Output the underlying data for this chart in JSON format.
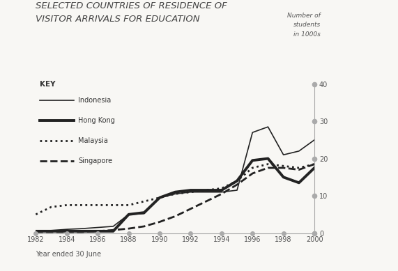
{
  "title_line1": "SELECTED COUNTRIES OF RESIDENCE OF",
  "title_line2": "VISITOR ARRIVALS FOR EDUCATION",
  "right_label_line1": "Number of",
  "right_label_line2": "students",
  "right_label_line3": "in 1000s",
  "xlabel": "Year ended 30 June",
  "ylim": [
    0,
    40
  ],
  "xlim": [
    1982,
    2000
  ],
  "yticks": [
    0,
    10,
    20,
    30,
    40
  ],
  "xticks": [
    1982,
    1984,
    1986,
    1988,
    1990,
    1992,
    1994,
    1996,
    1998,
    2000
  ],
  "background_color": "#f8f7f4",
  "line_color": "#222222",
  "axis_color": "#aaaaaa",
  "text_color": "#555555",
  "series": {
    "Indonesia": {
      "x": [
        1982,
        1983,
        1984,
        1985,
        1986,
        1987,
        1988,
        1989,
        1990,
        1991,
        1992,
        1993,
        1994,
        1995,
        1996,
        1997,
        1998,
        1999,
        2000
      ],
      "y": [
        0.5,
        0.7,
        1.0,
        1.2,
        1.5,
        1.8,
        5.0,
        5.2,
        9.5,
        10.5,
        11.0,
        11.0,
        11.0,
        11.5,
        27.0,
        28.5,
        21.0,
        22.0,
        25.0
      ],
      "linestyle": "-",
      "linewidth": 1.2,
      "color": "#222222"
    },
    "Hong Kong": {
      "x": [
        1982,
        1983,
        1984,
        1985,
        1986,
        1987,
        1988,
        1989,
        1990,
        1991,
        1992,
        1993,
        1994,
        1995,
        1996,
        1997,
        1998,
        1999,
        2000
      ],
      "y": [
        0.5,
        0.5,
        0.5,
        0.5,
        0.5,
        0.5,
        5.0,
        5.5,
        9.5,
        11.0,
        11.5,
        11.5,
        11.5,
        14.0,
        19.5,
        20.0,
        15.0,
        13.5,
        17.5
      ],
      "linestyle": "-",
      "linewidth": 2.8,
      "color": "#222222"
    },
    "Malaysia": {
      "x": [
        1982,
        1983,
        1984,
        1985,
        1986,
        1987,
        1988,
        1989,
        1990,
        1991,
        1992,
        1993,
        1994,
        1995,
        1996,
        1997,
        1998,
        1999,
        2000
      ],
      "y": [
        5.0,
        7.0,
        7.5,
        7.5,
        7.5,
        7.5,
        7.5,
        8.5,
        9.5,
        10.5,
        11.0,
        11.5,
        12.0,
        14.0,
        17.5,
        18.5,
        18.0,
        17.5,
        18.5
      ],
      "linestyle": ":",
      "linewidth": 2.0,
      "color": "#222222"
    },
    "Singapore": {
      "x": [
        1982,
        1983,
        1984,
        1985,
        1986,
        1987,
        1988,
        1989,
        1990,
        1991,
        1992,
        1993,
        1994,
        1995,
        1996,
        1997,
        1998,
        1999,
        2000
      ],
      "y": [
        0.3,
        0.3,
        0.3,
        0.3,
        0.5,
        0.8,
        1.2,
        1.8,
        3.0,
        4.5,
        6.5,
        8.5,
        10.5,
        13.0,
        16.0,
        17.5,
        17.5,
        17.0,
        18.5
      ],
      "linestyle": "--",
      "linewidth": 2.0,
      "color": "#222222"
    }
  },
  "key_labels": [
    "Indonesia",
    "Hong Kong",
    "Malaysia",
    "Singapore"
  ],
  "key_linestyles": [
    "-",
    "-",
    ":",
    "--"
  ],
  "key_linewidths": [
    1.2,
    2.8,
    2.0,
    2.0
  ]
}
